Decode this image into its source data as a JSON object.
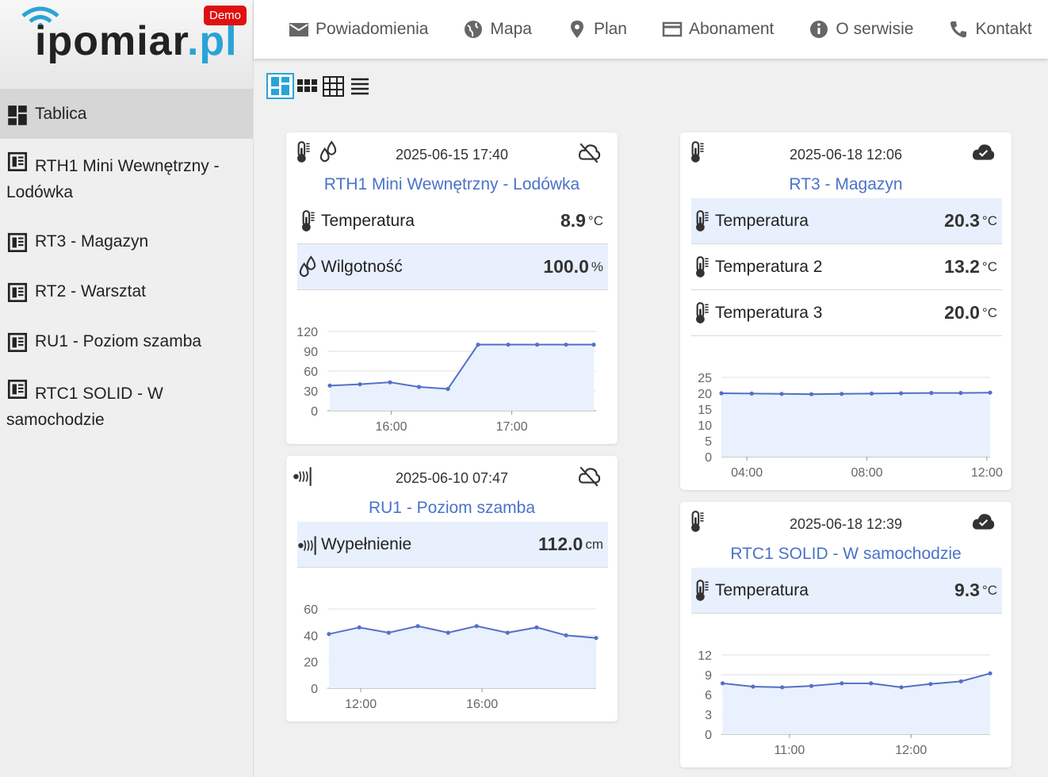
{
  "header": {
    "logo": {
      "name": "ipomiar",
      "tld": ".pl"
    },
    "badge": "Demo",
    "nav": [
      "Powiadomienia",
      "Mapa",
      "Plan",
      "Abonament",
      "O serwisie",
      "Kontakt"
    ]
  },
  "sidebar": {
    "items": [
      "Tablica",
      "RTH1 Mini Wewnętrzny - Lodówka",
      "RT3 - Magazyn",
      "RT2 - Warsztat",
      "RU1 - Poziom szamba",
      "RTC1 SOLID - W samochodzie"
    ]
  },
  "cards": [
    {
      "date": "2025-06-15 17:40",
      "status": "offline",
      "title": "RTH1 Mini Wewnętrzny - Lodówka",
      "readings": [
        {
          "icon": "temperature",
          "label": "Temperatura",
          "value": "8.9",
          "unit": "°C",
          "highlight": false
        },
        {
          "icon": "humidity",
          "label": "Wilgotność",
          "value": "100.0",
          "unit": "%",
          "highlight": true
        }
      ],
      "chart": {
        "type": "line",
        "color": "#5470c6",
        "x": [
          15.49,
          15.74,
          15.99,
          16.23,
          16.47,
          16.72,
          16.97,
          17.21,
          17.45,
          17.68
        ],
        "values": [
          38,
          40,
          43,
          36,
          33,
          100,
          100,
          100,
          100,
          100
        ],
        "xlim": [
          15.47,
          17.7
        ],
        "ylim": [
          0,
          120
        ],
        "yticks": [
          0,
          30,
          60,
          90,
          120
        ],
        "xticks": [
          {
            "value": 16,
            "label": "16:00"
          },
          {
            "value": 17,
            "label": "17:00"
          }
        ]
      }
    },
    {
      "date": "2025-06-10 07:47",
      "status": "offline",
      "title": "RU1 - Poziom szamba",
      "readings": [
        {
          "icon": "ultrasonic",
          "label": "Wypełnienie",
          "value": "112.0",
          "unit": "cm",
          "highlight": true
        }
      ],
      "chart": {
        "type": "line",
        "color": "#5470c6",
        "x": [
          10.95,
          11.95,
          12.92,
          13.88,
          14.88,
          15.82,
          16.84,
          17.8,
          18.77,
          19.76
        ],
        "values": [
          41,
          46,
          42,
          47,
          42,
          47,
          42,
          46,
          40,
          38
        ],
        "xlim": [
          10.9,
          19.76
        ],
        "ylim": [
          0,
          60
        ],
        "yticks": [
          0,
          20,
          40,
          60
        ],
        "xticks": [
          {
            "value": 12,
            "label": "12:00"
          },
          {
            "value": 16,
            "label": "16:00"
          }
        ]
      }
    },
    {
      "date": "2025-06-18 12:06",
      "status": "online",
      "title": "RT3 - Magazyn",
      "readings": [
        {
          "icon": "temperature",
          "label": "Temperatura",
          "value": "20.3",
          "unit": "°C",
          "highlight": true
        },
        {
          "icon": "temperature",
          "label": "Temperatura 2",
          "value": "13.2",
          "unit": "°C",
          "highlight": false
        },
        {
          "icon": "temperature",
          "label": "Temperatura 3",
          "value": "20.0",
          "unit": "°C",
          "highlight": false
        }
      ],
      "chart": {
        "type": "line",
        "color": "#5470c6",
        "x": [
          3.15,
          4.16,
          5.16,
          6.15,
          7.16,
          8.16,
          9.14,
          10.15,
          11.13,
          12.11
        ],
        "values": [
          20.0,
          19.9,
          19.8,
          19.7,
          19.8,
          19.9,
          20.0,
          20.1,
          20.1,
          20.2
        ],
        "xlim": [
          3.15,
          12.11
        ],
        "ylim": [
          0,
          25
        ],
        "yticks": [
          0,
          5,
          10,
          15,
          20,
          25
        ],
        "xticks": [
          {
            "value": 4,
            "label": "04:00"
          },
          {
            "value": 8,
            "label": "08:00"
          },
          {
            "value": 12,
            "label": "12:00"
          }
        ]
      }
    },
    {
      "date": "2025-06-18 12:39",
      "status": "online",
      "title": "RTC1 SOLID - W samochodzie",
      "readings": [
        {
          "icon": "temperature",
          "label": "Temperatura",
          "value": "9.3",
          "unit": "°C",
          "highlight": true
        }
      ],
      "chart": {
        "type": "line",
        "color": "#5470c6",
        "x": [
          10.45,
          10.7,
          10.94,
          11.18,
          11.43,
          11.67,
          11.92,
          12.16,
          12.41,
          12.65
        ],
        "values": [
          7.7,
          7.2,
          7.1,
          7.3,
          7.7,
          7.7,
          7.1,
          7.6,
          8.0,
          9.2
        ],
        "xlim": [
          10.44,
          12.65
        ],
        "ylim": [
          0,
          12
        ],
        "yticks": [
          0,
          3,
          6,
          9,
          12
        ],
        "xticks": [
          {
            "value": 11,
            "label": "11:00"
          },
          {
            "value": 12,
            "label": "12:00"
          }
        ]
      }
    }
  ]
}
